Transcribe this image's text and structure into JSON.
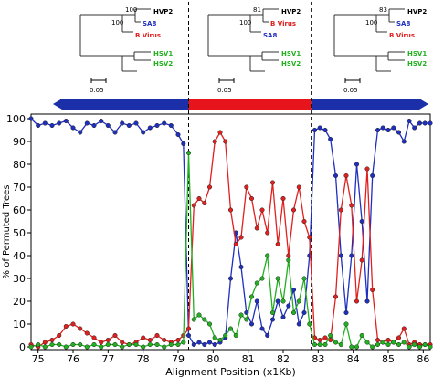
{
  "trees": [
    {
      "taxa": [
        {
          "name": "HVP2",
          "color": "#000000"
        },
        {
          "name": "SA8",
          "color": "#1f2fbf"
        },
        {
          "name": "B Virus",
          "color": "#e0201e"
        },
        {
          "name": "HSV1",
          "color": "#22b021"
        },
        {
          "name": "HSV2",
          "color": "#22b021"
        }
      ],
      "bootstraps": [
        "100",
        "100"
      ],
      "scale_label": "0.05"
    },
    {
      "taxa": [
        {
          "name": "HVP2",
          "color": "#000000"
        },
        {
          "name": "B Virus",
          "color": "#e0201e"
        },
        {
          "name": "SA8",
          "color": "#1f2fbf"
        },
        {
          "name": "HSV1",
          "color": "#22b021"
        },
        {
          "name": "HSV2",
          "color": "#22b021"
        }
      ],
      "bootstraps": [
        "81",
        "100"
      ],
      "scale_label": "0.05"
    },
    {
      "taxa": [
        {
          "name": "HVP2",
          "color": "#000000"
        },
        {
          "name": "SA8",
          "color": "#1f2fbf"
        },
        {
          "name": "B Virus",
          "color": "#e0201e"
        },
        {
          "name": "HSV1",
          "color": "#22b021"
        },
        {
          "name": "HSV2",
          "color": "#22b021"
        }
      ],
      "bootstraps": [
        "83",
        "100"
      ],
      "scale_label": "0.05"
    }
  ],
  "colors": {
    "blue": "#1f2fbf",
    "red": "#e0201e",
    "green": "#22b021",
    "arrow_blue": "#1a2fa8",
    "arrow_red": "#e8141b"
  },
  "chart_data": {
    "type": "line",
    "xlabel": "Alignment Position (x1Kb)",
    "ylabel": "% of Permuted Trees",
    "xlim": [
      74.8,
      86.2
    ],
    "ylim": [
      0,
      100
    ],
    "xticks": [
      "75",
      "76",
      "77",
      "78",
      "79",
      "80",
      "81",
      "82",
      "83",
      "84",
      "85",
      "86"
    ],
    "yticks": [
      "0",
      "10",
      "20",
      "30",
      "40",
      "50",
      "60",
      "70",
      "80",
      "90",
      "100"
    ],
    "breakpoints": [
      79.3,
      82.8
    ],
    "segments": [
      {
        "from": 74.8,
        "to": 79.3,
        "color": "blue",
        "direction": "left"
      },
      {
        "from": 79.3,
        "to": 82.8,
        "color": "red",
        "direction": "none"
      },
      {
        "from": 82.8,
        "to": 86.2,
        "color": "blue",
        "direction": "right"
      }
    ],
    "series": [
      {
        "color": "blue",
        "points": [
          [
            74.8,
            100
          ],
          [
            75.0,
            97
          ],
          [
            75.2,
            98
          ],
          [
            75.4,
            97
          ],
          [
            75.6,
            98
          ],
          [
            75.8,
            99
          ],
          [
            76.0,
            96
          ],
          [
            76.2,
            94
          ],
          [
            76.4,
            98
          ],
          [
            76.6,
            97
          ],
          [
            76.8,
            99
          ],
          [
            77.0,
            97
          ],
          [
            77.2,
            94
          ],
          [
            77.4,
            98
          ],
          [
            77.6,
            97
          ],
          [
            77.8,
            98
          ],
          [
            78.0,
            94
          ],
          [
            78.2,
            96
          ],
          [
            78.4,
            97
          ],
          [
            78.6,
            98
          ],
          [
            78.8,
            97
          ],
          [
            79.0,
            93
          ],
          [
            79.15,
            89
          ],
          [
            79.3,
            5
          ],
          [
            79.45,
            1
          ],
          [
            79.6,
            2
          ],
          [
            79.75,
            1
          ],
          [
            79.9,
            2
          ],
          [
            80.05,
            1
          ],
          [
            80.2,
            2
          ],
          [
            80.35,
            4
          ],
          [
            80.5,
            30
          ],
          [
            80.65,
            50
          ],
          [
            80.8,
            35
          ],
          [
            80.95,
            15
          ],
          [
            81.1,
            10
          ],
          [
            81.25,
            20
          ],
          [
            81.4,
            8
          ],
          [
            81.55,
            5
          ],
          [
            81.7,
            12
          ],
          [
            81.85,
            20
          ],
          [
            82.0,
            13
          ],
          [
            82.15,
            18
          ],
          [
            82.3,
            25
          ],
          [
            82.45,
            10
          ],
          [
            82.6,
            15
          ],
          [
            82.75,
            40
          ],
          [
            82.9,
            95
          ],
          [
            83.05,
            96
          ],
          [
            83.2,
            95
          ],
          [
            83.35,
            91
          ],
          [
            83.5,
            75
          ],
          [
            83.65,
            40
          ],
          [
            83.8,
            15
          ],
          [
            83.95,
            40
          ],
          [
            84.1,
            80
          ],
          [
            84.25,
            55
          ],
          [
            84.4,
            20
          ],
          [
            84.55,
            75
          ],
          [
            84.7,
            95
          ],
          [
            84.85,
            96
          ],
          [
            85.0,
            95
          ],
          [
            85.15,
            96
          ],
          [
            85.3,
            94
          ],
          [
            85.45,
            90
          ],
          [
            85.6,
            99
          ],
          [
            85.75,
            96
          ],
          [
            85.9,
            98
          ],
          [
            86.05,
            98
          ],
          [
            86.2,
            98
          ]
        ]
      },
      {
        "color": "red",
        "points": [
          [
            74.8,
            1
          ],
          [
            75.0,
            0
          ],
          [
            75.2,
            2
          ],
          [
            75.4,
            3
          ],
          [
            75.6,
            5
          ],
          [
            75.8,
            9
          ],
          [
            76.0,
            10
          ],
          [
            76.2,
            8
          ],
          [
            76.4,
            6
          ],
          [
            76.6,
            4
          ],
          [
            76.8,
            2
          ],
          [
            77.0,
            3
          ],
          [
            77.2,
            5
          ],
          [
            77.4,
            2
          ],
          [
            77.6,
            1
          ],
          [
            77.8,
            2
          ],
          [
            78.0,
            4
          ],
          [
            78.2,
            3
          ],
          [
            78.4,
            5
          ],
          [
            78.6,
            3
          ],
          [
            78.8,
            2
          ],
          [
            79.0,
            3
          ],
          [
            79.15,
            5
          ],
          [
            79.3,
            8
          ],
          [
            79.45,
            62
          ],
          [
            79.6,
            65
          ],
          [
            79.75,
            63
          ],
          [
            79.9,
            70
          ],
          [
            80.05,
            90
          ],
          [
            80.2,
            94
          ],
          [
            80.35,
            90
          ],
          [
            80.5,
            60
          ],
          [
            80.65,
            45
          ],
          [
            80.8,
            48
          ],
          [
            80.95,
            70
          ],
          [
            81.1,
            65
          ],
          [
            81.25,
            52
          ],
          [
            81.4,
            60
          ],
          [
            81.55,
            50
          ],
          [
            81.7,
            72
          ],
          [
            81.85,
            45
          ],
          [
            82.0,
            65
          ],
          [
            82.15,
            40
          ],
          [
            82.3,
            60
          ],
          [
            82.45,
            70
          ],
          [
            82.6,
            55
          ],
          [
            82.75,
            48
          ],
          [
            82.9,
            4
          ],
          [
            83.05,
            3
          ],
          [
            83.2,
            4
          ],
          [
            83.35,
            3
          ],
          [
            83.5,
            22
          ],
          [
            83.65,
            60
          ],
          [
            83.8,
            75
          ],
          [
            83.95,
            62
          ],
          [
            84.1,
            20
          ],
          [
            84.25,
            38
          ],
          [
            84.4,
            78
          ],
          [
            84.55,
            25
          ],
          [
            84.7,
            3
          ],
          [
            84.85,
            2
          ],
          [
            85.0,
            3
          ],
          [
            85.15,
            2
          ],
          [
            85.3,
            4
          ],
          [
            85.45,
            8
          ],
          [
            85.6,
            1
          ],
          [
            85.75,
            2
          ],
          [
            85.9,
            1
          ],
          [
            86.05,
            1
          ],
          [
            86.2,
            1
          ]
        ]
      },
      {
        "color": "green",
        "points": [
          [
            74.8,
            0
          ],
          [
            75.0,
            1
          ],
          [
            75.2,
            0
          ],
          [
            75.4,
            1
          ],
          [
            75.6,
            1
          ],
          [
            75.8,
            0
          ],
          [
            76.0,
            1
          ],
          [
            76.2,
            1
          ],
          [
            76.4,
            0
          ],
          [
            76.6,
            1
          ],
          [
            76.8,
            0
          ],
          [
            77.0,
            1
          ],
          [
            77.2,
            1
          ],
          [
            77.4,
            0
          ],
          [
            77.6,
            1
          ],
          [
            77.8,
            1
          ],
          [
            78.0,
            0
          ],
          [
            78.2,
            1
          ],
          [
            78.4,
            1
          ],
          [
            78.6,
            0
          ],
          [
            78.8,
            1
          ],
          [
            79.0,
            1
          ],
          [
            79.15,
            2
          ],
          [
            79.3,
            85
          ],
          [
            79.45,
            12
          ],
          [
            79.6,
            14
          ],
          [
            79.75,
            12
          ],
          [
            79.9,
            10
          ],
          [
            80.05,
            4
          ],
          [
            80.2,
            3
          ],
          [
            80.35,
            5
          ],
          [
            80.5,
            8
          ],
          [
            80.65,
            5
          ],
          [
            80.8,
            14
          ],
          [
            80.95,
            12
          ],
          [
            81.1,
            22
          ],
          [
            81.25,
            28
          ],
          [
            81.4,
            30
          ],
          [
            81.55,
            40
          ],
          [
            81.7,
            15
          ],
          [
            81.85,
            30
          ],
          [
            82.0,
            20
          ],
          [
            82.15,
            38
          ],
          [
            82.3,
            15
          ],
          [
            82.45,
            20
          ],
          [
            82.6,
            30
          ],
          [
            82.75,
            10
          ],
          [
            82.9,
            1
          ],
          [
            83.05,
            1
          ],
          [
            83.2,
            1
          ],
          [
            83.35,
            5
          ],
          [
            83.5,
            2
          ],
          [
            83.65,
            1
          ],
          [
            83.8,
            10
          ],
          [
            83.95,
            0
          ],
          [
            84.1,
            0
          ],
          [
            84.25,
            5
          ],
          [
            84.4,
            2
          ],
          [
            84.55,
            0
          ],
          [
            84.7,
            1
          ],
          [
            84.85,
            2
          ],
          [
            85.0,
            1
          ],
          [
            85.15,
            2
          ],
          [
            85.3,
            1
          ],
          [
            85.45,
            2
          ],
          [
            85.6,
            0
          ],
          [
            85.75,
            1
          ],
          [
            85.9,
            0
          ],
          [
            86.05,
            1
          ],
          [
            86.2,
            0
          ]
        ]
      }
    ]
  }
}
